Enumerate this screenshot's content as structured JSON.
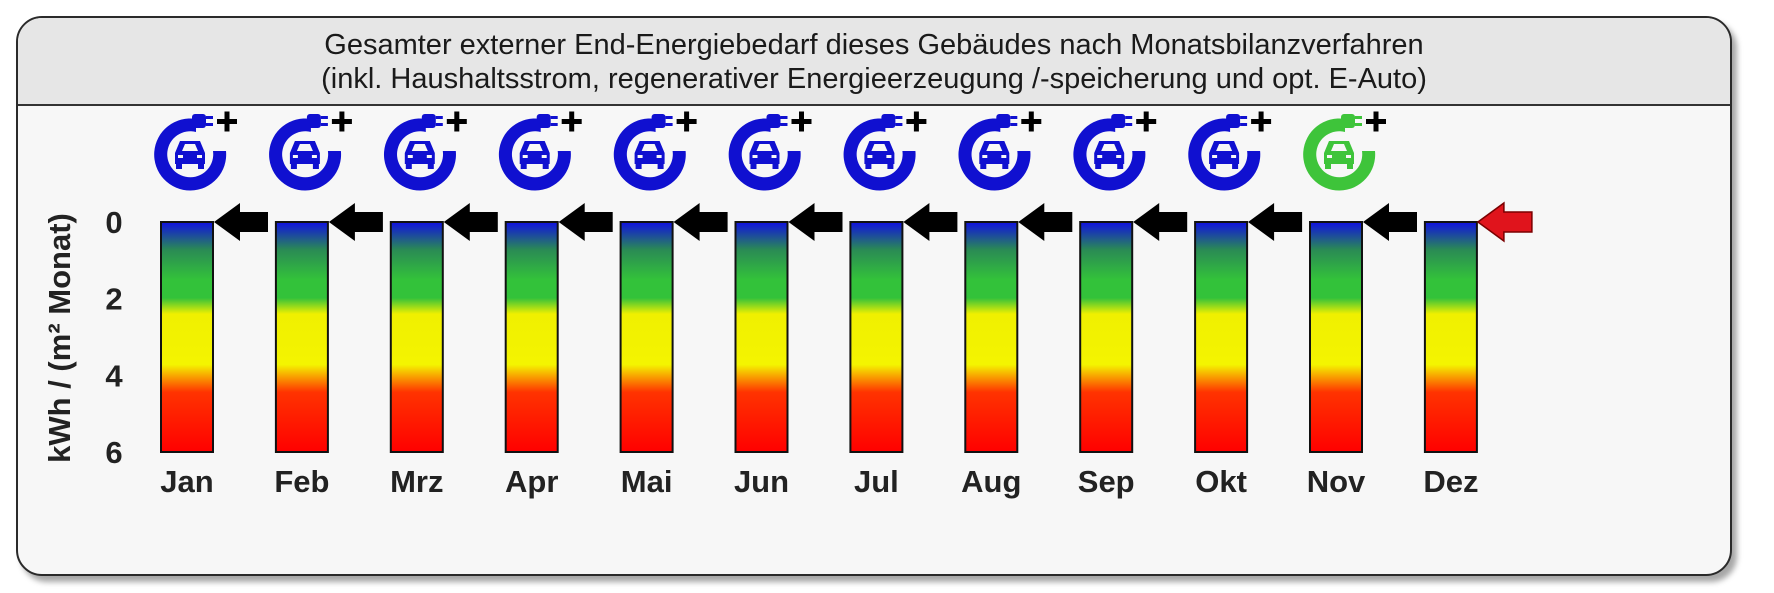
{
  "header": {
    "title": "Gesamter externer End-Energiebedarf dieses Gebäudes nach Monatsbilanzverfahren",
    "subtitle": "(inkl. Haushaltsstrom, regenerativer Energieerzeugung /-speicherung und opt. E-Auto)"
  },
  "colors": {
    "scale_top": "#1010e0",
    "scale_green": "#33c23a",
    "scale_yellow": "#f4f400",
    "scale_red": "#ff1a00",
    "ev_icon_default": "#1010d0",
    "ev_icon_highlight": "#3ec43a",
    "arrow_default": "#000000",
    "arrow_highlight": "#e0141c"
  },
  "chart_data": {
    "type": "bar",
    "ylabel": "kWh / (m² Monat)",
    "ylim": [
      0,
      6
    ],
    "y_inverted": true,
    "yticks": [
      "0",
      "2",
      "4",
      "6"
    ],
    "categories": [
      "Jan",
      "Feb",
      "Mrz",
      "Apr",
      "Mai",
      "Jun",
      "Jul",
      "Aug",
      "Sep",
      "Okt",
      "Nov",
      "Dez"
    ],
    "values": [
      0,
      0,
      0,
      0,
      0,
      0,
      0,
      0,
      0,
      0,
      0,
      0
    ],
    "ev_icons": [
      "ev-charger-icon",
      "ev-charger-icon",
      "ev-charger-icon",
      "ev-charger-icon",
      "ev-charger-icon",
      "ev-charger-icon",
      "ev-charger-icon",
      "ev-charger-icon",
      "ev-charger-icon",
      "ev-charger-icon",
      "ev-charger-icon",
      null
    ],
    "ev_icon_highlight_month": "Nov",
    "arrow_highlight_month": "Dez",
    "grid": false,
    "legend": "none"
  }
}
